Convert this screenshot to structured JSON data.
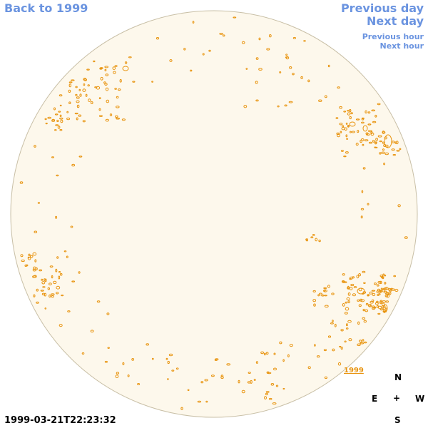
{
  "nav": {
    "back": "Back to 1999",
    "previous_day": "Previous day",
    "next_day": "Next day",
    "previous_hour": "Previous hour",
    "next_hour": "Next hour"
  },
  "image": {
    "year_label": "1999",
    "timestamp": "1999-03-21T22:23:32"
  },
  "compass": {
    "north": "N",
    "east": "E",
    "center": "+",
    "west": "W",
    "south": "S"
  },
  "colors": {
    "disk_fill": "#fdf8ec",
    "disk_edge": "#c8bfa6",
    "contour": "#e8940f",
    "link": "#6b94e0"
  }
}
